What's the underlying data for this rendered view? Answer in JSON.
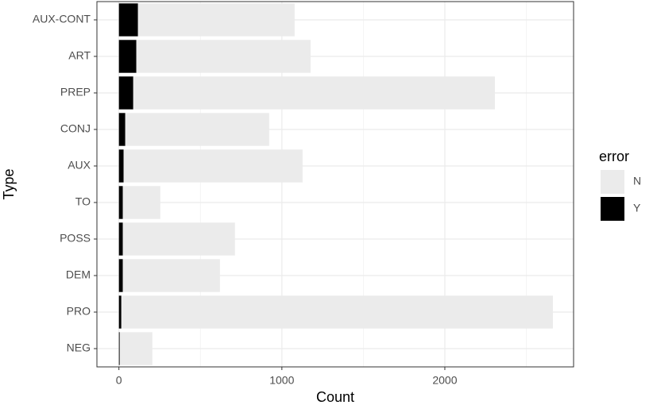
{
  "chart_data": {
    "type": "stacked-barh",
    "categories": [
      "AUX-CONT",
      "ART",
      "PREP",
      "CONJ",
      "AUX",
      "TO",
      "POSS",
      "DEM",
      "PRO",
      "NEG"
    ],
    "series": [
      {
        "name": "N",
        "color": "#ebebeb",
        "values": [
          961,
          1069,
          2219,
          883,
          1098,
          230,
          688,
          596,
          2648,
          200
        ]
      },
      {
        "name": "Y",
        "color": "#000000",
        "values": [
          117,
          107,
          88,
          39,
          29,
          24,
          24,
          24,
          15,
          5
        ]
      }
    ],
    "xlabel": "Count",
    "ylabel": "Type",
    "legend_title": "error",
    "legend": "right",
    "xlim": [
      -135,
      2790
    ],
    "xticks": [
      0,
      1000,
      2000
    ],
    "xminorticks": [
      500,
      1500,
      2500
    ],
    "grid": true
  }
}
